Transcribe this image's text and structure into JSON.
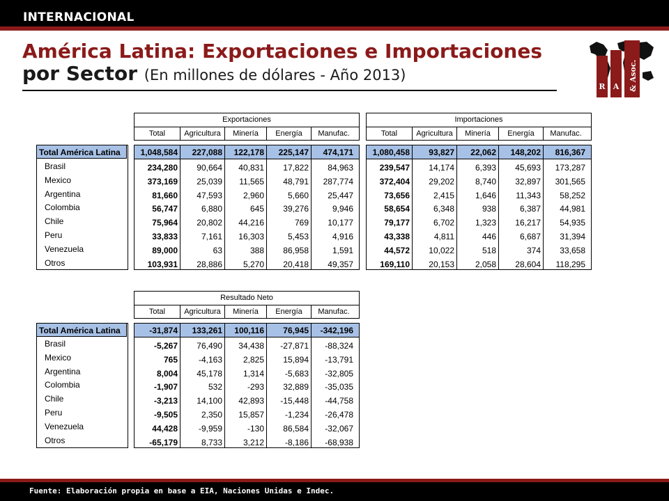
{
  "header": {
    "section": "INTERNACIONAL"
  },
  "title": {
    "line1": "América Latina: Exportaciones e Importaciones",
    "line2_main": "por Sector",
    "line2_sub": "(En millones de dólares - Año 2013)"
  },
  "logo": {
    "letters": [
      "R",
      "A",
      "& Asoc."
    ],
    "colors": {
      "bar": "#8b1a1a",
      "map": "#111111"
    }
  },
  "columns": [
    "Total",
    "Agricultura",
    "Minería",
    "Energía",
    "Manufac."
  ],
  "rows": [
    "Total América Latina",
    "Brasil",
    "Mexico",
    "Argentina",
    "Colombia",
    "Chile",
    "Peru",
    "Venezuela",
    "Otros"
  ],
  "tables": {
    "exportaciones": {
      "title": "Exportaciones",
      "data": [
        [
          "1,048,584",
          "227,088",
          "122,178",
          "225,147",
          "474,171"
        ],
        [
          "234,280",
          "90,664",
          "40,831",
          "17,822",
          "84,963"
        ],
        [
          "373,169",
          "25,039",
          "11,565",
          "48,791",
          "287,774"
        ],
        [
          "81,660",
          "47,593",
          "2,960",
          "5,660",
          "25,447"
        ],
        [
          "56,747",
          "6,880",
          "645",
          "39,276",
          "9,946"
        ],
        [
          "75,964",
          "20,802",
          "44,216",
          "769",
          "10,177"
        ],
        [
          "33,833",
          "7,161",
          "16,303",
          "5,453",
          "4,916"
        ],
        [
          "89,000",
          "63",
          "388",
          "86,958",
          "1,591"
        ],
        [
          "103,931",
          "28,886",
          "5,270",
          "20,418",
          "49,357"
        ]
      ]
    },
    "importaciones": {
      "title": "Importaciones",
      "data": [
        [
          "1,080,458",
          "93,827",
          "22,062",
          "148,202",
          "816,367"
        ],
        [
          "239,547",
          "14,174",
          "6,393",
          "45,693",
          "173,287"
        ],
        [
          "372,404",
          "29,202",
          "8,740",
          "32,897",
          "301,565"
        ],
        [
          "73,656",
          "2,415",
          "1,646",
          "11,343",
          "58,252"
        ],
        [
          "58,654",
          "6,348",
          "938",
          "6,387",
          "44,981"
        ],
        [
          "79,177",
          "6,702",
          "1,323",
          "16,217",
          "54,935"
        ],
        [
          "43,338",
          "4,811",
          "446",
          "6,687",
          "31,394"
        ],
        [
          "44,572",
          "10,022",
          "518",
          "374",
          "33,658"
        ],
        [
          "169,110",
          "20,153",
          "2,058",
          "28,604",
          "118,295"
        ]
      ]
    },
    "resultado": {
      "title": "Resultado Neto",
      "data": [
        [
          "-31,874",
          "133,261",
          "100,116",
          "76,945",
          "-342,196"
        ],
        [
          "-5,267",
          "76,490",
          "34,438",
          "-27,871",
          "-88,324"
        ],
        [
          "765",
          "-4,163",
          "2,825",
          "15,894",
          "-13,791"
        ],
        [
          "8,004",
          "45,178",
          "1,314",
          "-5,683",
          "-32,805"
        ],
        [
          "-1,907",
          "532",
          "-293",
          "32,889",
          "-35,035"
        ],
        [
          "-3,213",
          "14,100",
          "42,893",
          "-15,448",
          "-44,758"
        ],
        [
          "-9,505",
          "2,350",
          "15,857",
          "-1,234",
          "-26,478"
        ],
        [
          "44,428",
          "-9,959",
          "-130",
          "86,584",
          "-32,067"
        ],
        [
          "-65,179",
          "8,733",
          "3,212",
          "-8,186",
          "-68,938"
        ]
      ]
    }
  },
  "footer": {
    "source": "Fuente: Elaboración propia en base a EIA, Naciones Unidas e Indec."
  },
  "colors": {
    "brand_red": "#8b1a1a",
    "total_row": "#a7c1e6",
    "bar": "#000000"
  }
}
